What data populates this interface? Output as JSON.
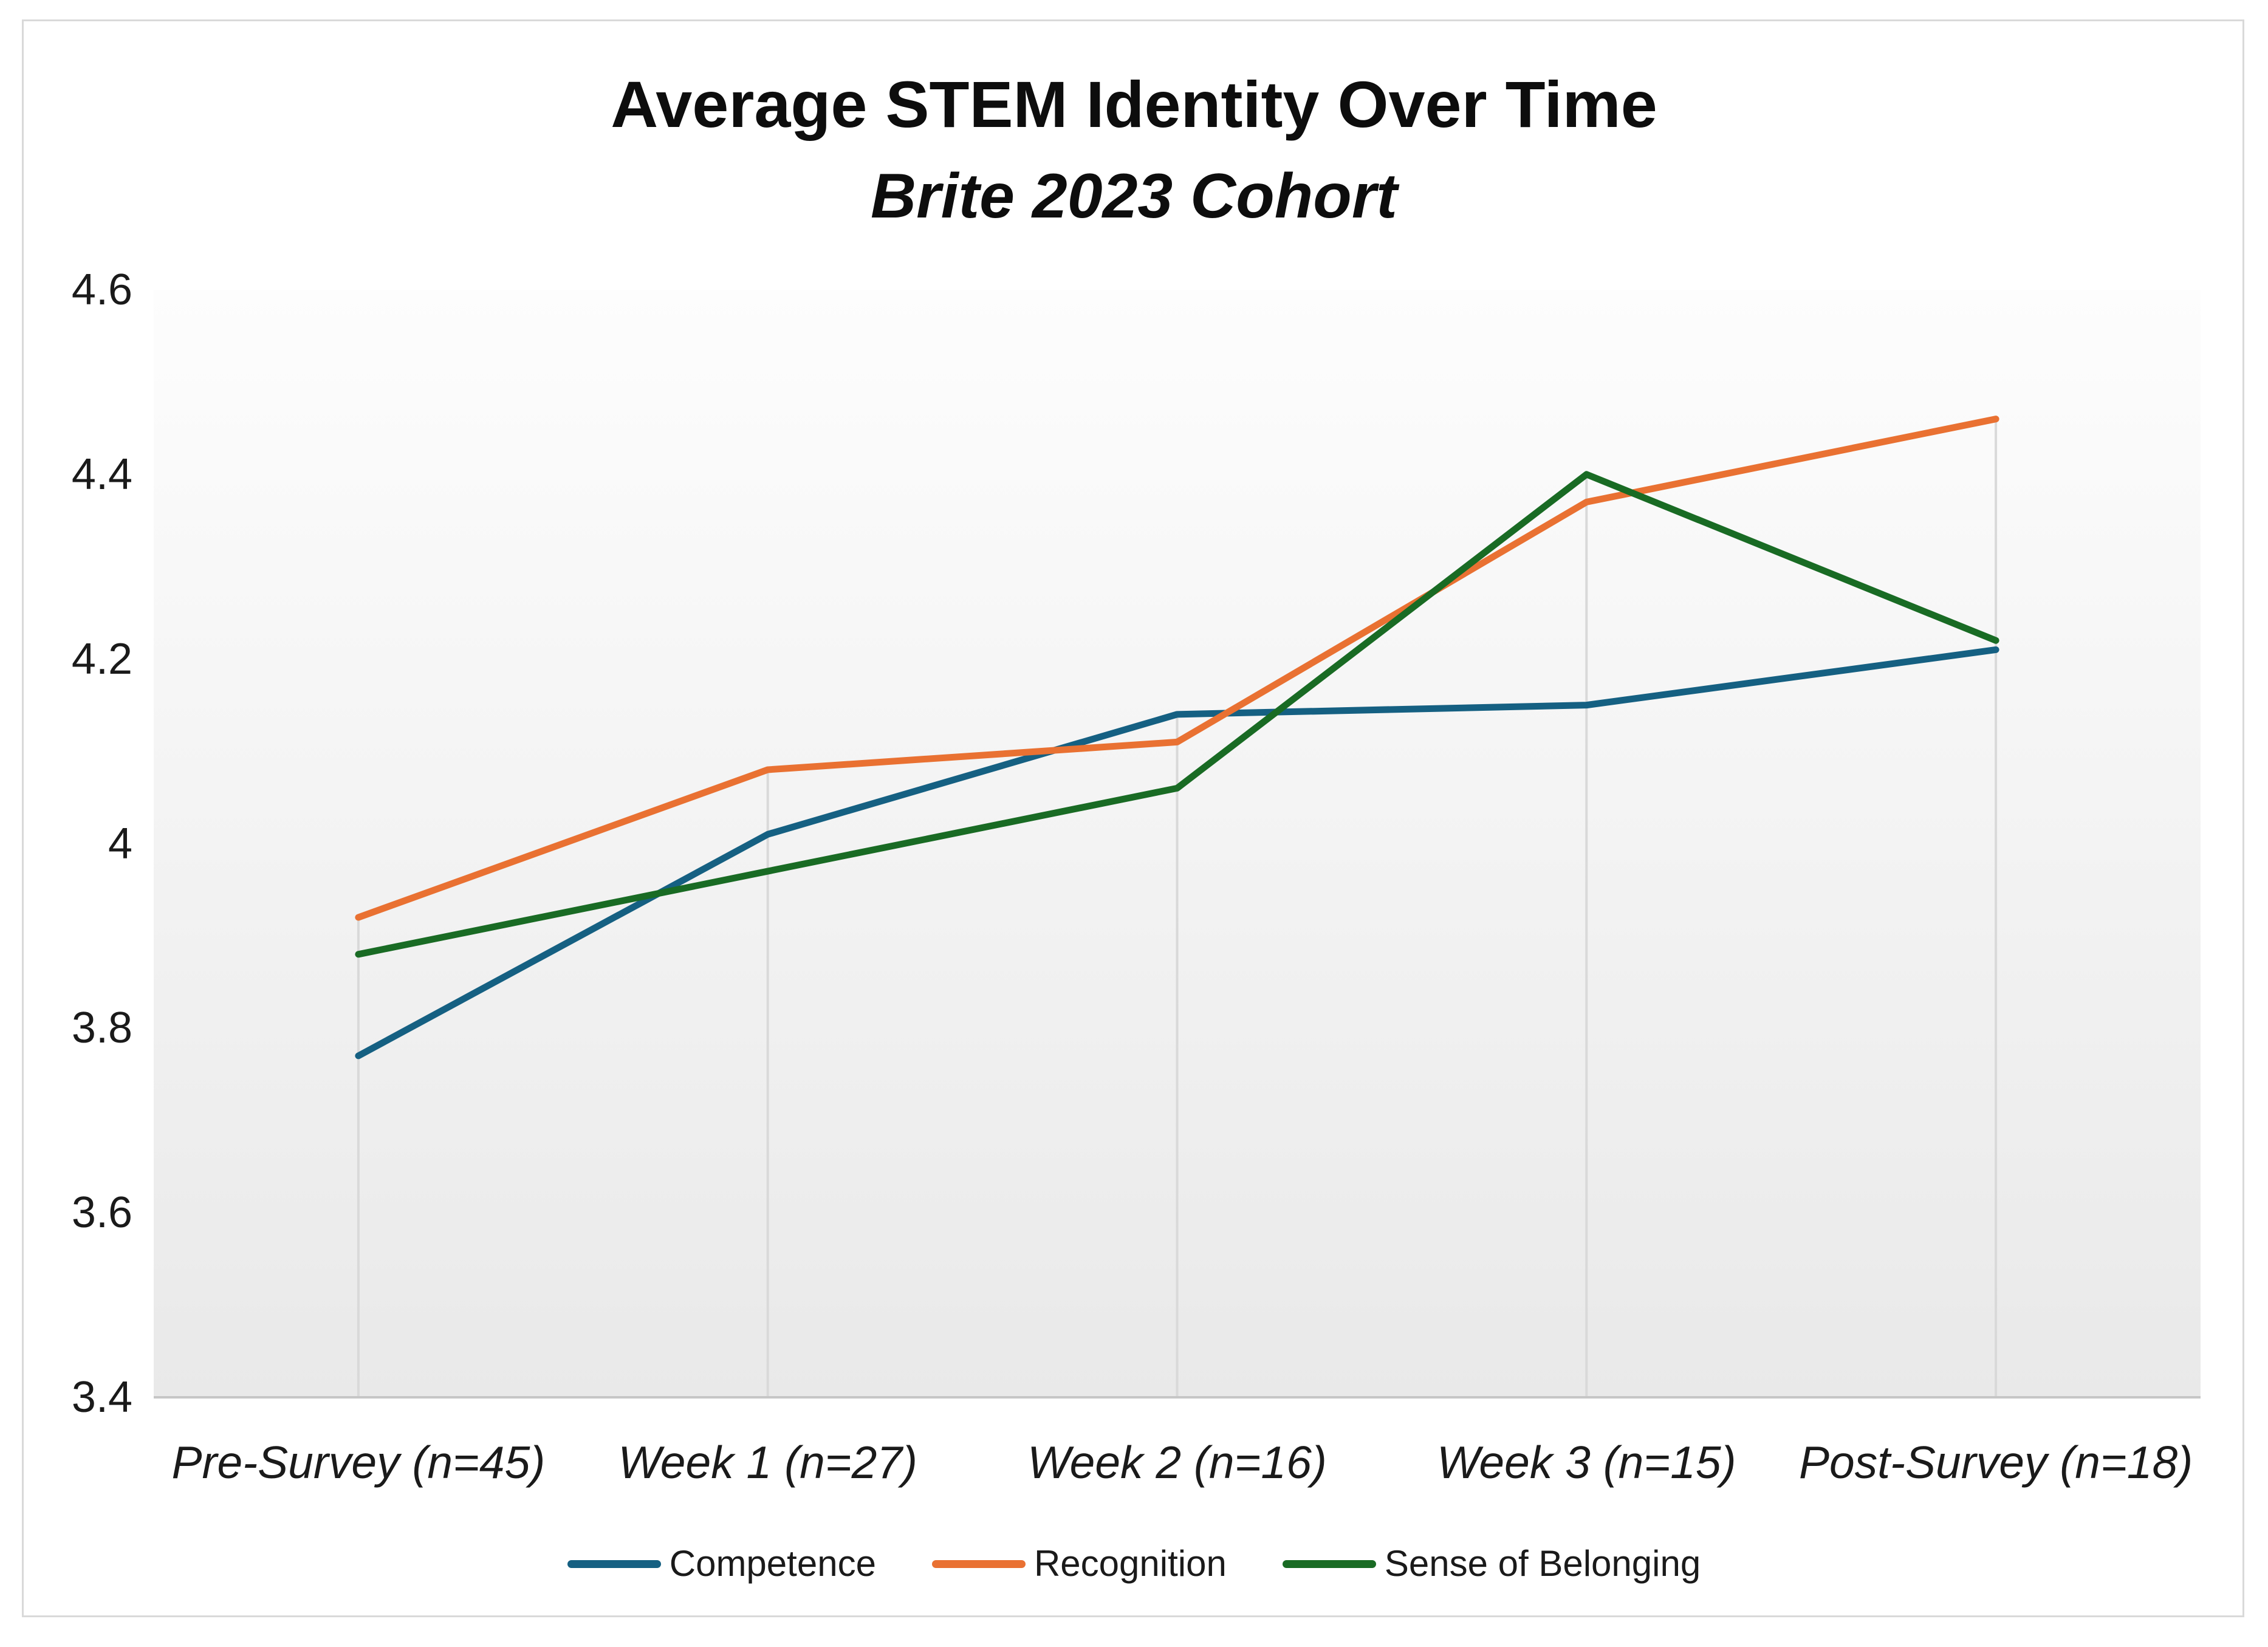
{
  "chart": {
    "title": "Average STEM Identity Over Time",
    "subtitle": "Brite 2023 Cohort",
    "frame_border_color": "#D9D9D9",
    "axis_line_color": "#C6C6C6",
    "drop_line_color": "#D9D9D9",
    "text_color": "#1A1A1A",
    "plot_fill_top": "#FDFDFD",
    "plot_fill_bottom": "#E9E9E9"
  },
  "chart_data": {
    "type": "line",
    "title": "Average STEM Identity Over Time",
    "subtitle": "Brite 2023 Cohort",
    "categories": [
      "Pre-Survey (n=45)",
      "Week 1 (n=27)",
      "Week 2 (n=16)",
      "Week 3 (n=15)",
      "Post-Survey (n=18)"
    ],
    "series": [
      {
        "name": "Competence",
        "color": "#156082",
        "values": [
          3.77,
          4.01,
          4.14,
          4.15,
          4.21
        ]
      },
      {
        "name": "Recognition",
        "color": "#E97132",
        "values": [
          3.92,
          4.08,
          4.11,
          4.37,
          4.46
        ]
      },
      {
        "name": "Sense of Belonging",
        "color": "#196B24",
        "values": [
          3.88,
          3.97,
          4.06,
          4.4,
          4.22
        ]
      }
    ],
    "xlabel": "",
    "ylabel": "",
    "ylim": [
      3.4,
      4.6
    ],
    "ytick_values": [
      4.6,
      4.4,
      4.2,
      4.0,
      3.8,
      3.6,
      3.4
    ],
    "ytick_labels": [
      "4.6",
      "4.4",
      "4.2",
      "4",
      "3.8",
      "3.6",
      "3.4"
    ],
    "grid": "vertical drop line from highest point of each category down to x-axis; no horizontal gridlines",
    "legend_position": "bottom"
  }
}
